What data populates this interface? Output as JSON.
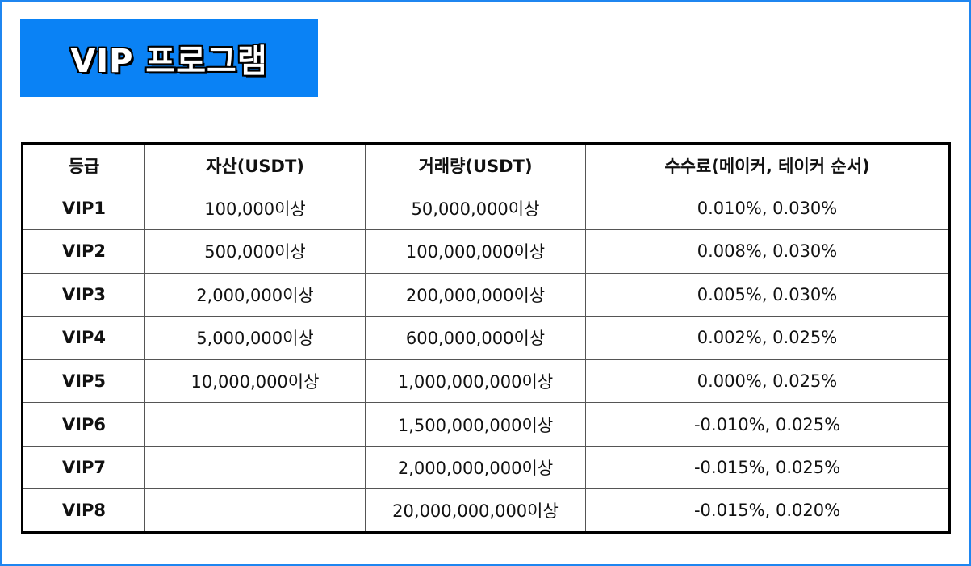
{
  "banner": {
    "title": "VIP 프로그램"
  },
  "table": {
    "headers": [
      "등급",
      "자산(USDT)",
      "거래량(USDT)",
      "수수료(메이커, 테이커 순서)"
    ],
    "rows": [
      {
        "level": "VIP1",
        "assets": "100,000이상",
        "volume": "50,000,000이상",
        "fees": "0.010%, 0.030%"
      },
      {
        "level": "VIP2",
        "assets": "500,000이상",
        "volume": "100,000,000이상",
        "fees": "0.008%, 0.030%"
      },
      {
        "level": "VIP3",
        "assets": "2,000,000이상",
        "volume": "200,000,000이상",
        "fees": "0.005%, 0.030%"
      },
      {
        "level": "VIP4",
        "assets": "5,000,000이상",
        "volume": "600,000,000이상",
        "fees": "0.002%, 0.025%"
      },
      {
        "level": "VIP5",
        "assets": "10,000,000이상",
        "volume": "1,000,000,000이상",
        "fees": "0.000%, 0.025%"
      },
      {
        "level": "VIP6",
        "assets": "",
        "volume": "1,500,000,000이상",
        "fees": "-0.010%, 0.025%"
      },
      {
        "level": "VIP7",
        "assets": "",
        "volume": "2,000,000,000이상",
        "fees": "-0.015%, 0.025%"
      },
      {
        "level": "VIP8",
        "assets": "",
        "volume": "20,000,000,000이상",
        "fees": "-0.015%, 0.020%"
      }
    ]
  },
  "colors": {
    "accent": "#0a82f5",
    "frame": "#1f86f0"
  }
}
